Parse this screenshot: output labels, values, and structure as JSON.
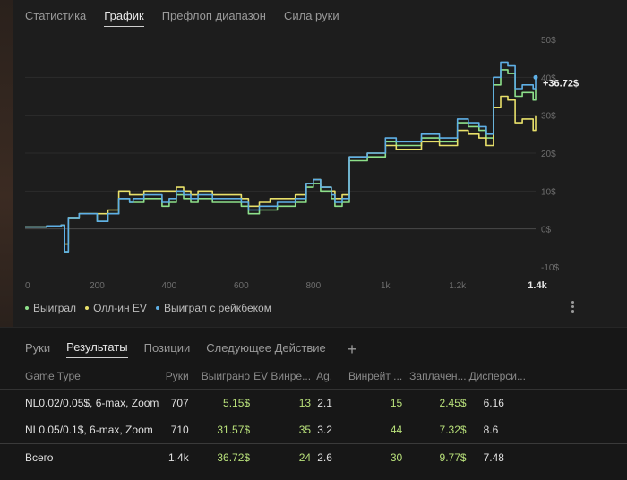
{
  "tabs_top": [
    "Статистика",
    "График",
    "Префлоп диапазон",
    "Сила руки"
  ],
  "active_top_tab": 1,
  "colors": {
    "won": "#8de08a",
    "allin_ev": "#e8e06a",
    "rakeback": "#5fb0e6",
    "positive": "#b8e07a",
    "background": "#1c1c1c"
  },
  "chart_data": {
    "type": "line",
    "x_ticks": [
      "0",
      "200",
      "400",
      "600",
      "800",
      "1k",
      "1.2k",
      "1.4k"
    ],
    "y_ticks": [
      "50$",
      "40$",
      "30$",
      "20$",
      "10$",
      "0$",
      "-10$"
    ],
    "xlim": [
      0,
      1417
    ],
    "ylim": [
      -10,
      50
    ],
    "grid": true,
    "legend_position": "bottom-left",
    "end_label": "+36.72$",
    "x_end_label": "1.4k",
    "series": [
      {
        "name": "Выиграл",
        "color": "#8de08a",
        "x": [
          0,
          60,
          100,
          110,
          120,
          150,
          200,
          230,
          260,
          290,
          300,
          330,
          380,
          400,
          420,
          440,
          460,
          480,
          520,
          560,
          600,
          620,
          650,
          680,
          700,
          720,
          750,
          780,
          800,
          820,
          850,
          860,
          880,
          900,
          950,
          1000,
          1030,
          1100,
          1150,
          1200,
          1230,
          1260,
          1280,
          1300,
          1320,
          1340,
          1360,
          1380,
          1410,
          1417
        ],
        "y": [
          0.5,
          0.8,
          1,
          -6,
          3,
          4,
          2,
          4,
          8,
          7,
          7,
          8,
          6,
          7,
          9,
          8,
          7,
          8,
          7,
          7,
          6,
          4,
          5,
          5,
          6,
          6,
          7,
          11,
          12,
          10,
          8,
          6,
          7,
          18,
          19,
          23,
          22,
          24,
          23,
          28,
          27,
          26,
          24,
          38,
          42,
          41,
          35,
          36,
          34,
          37
        ]
      },
      {
        "name": "Олл-ин EV",
        "color": "#e8e06a",
        "x": [
          0,
          60,
          100,
          110,
          120,
          150,
          200,
          230,
          260,
          290,
          300,
          330,
          380,
          400,
          420,
          440,
          460,
          480,
          520,
          560,
          600,
          620,
          650,
          680,
          700,
          720,
          750,
          780,
          800,
          820,
          850,
          860,
          880,
          900,
          950,
          1000,
          1030,
          1100,
          1150,
          1200,
          1230,
          1260,
          1280,
          1300,
          1320,
          1340,
          1360,
          1380,
          1410,
          1417
        ],
        "y": [
          0.5,
          0.8,
          1,
          -4,
          3,
          4,
          4,
          5,
          10,
          9,
          9,
          10,
          10,
          10,
          11,
          10,
          9,
          10,
          9,
          9,
          8,
          6,
          7,
          8,
          8,
          8,
          9,
          12,
          13,
          11,
          10,
          8,
          9,
          19,
          20,
          22,
          21,
          23,
          22,
          26,
          25,
          24,
          22,
          32,
          35,
          34,
          28,
          29,
          26,
          30
        ]
      },
      {
        "name": "Выиграл с рейкбеком",
        "color": "#5fb0e6",
        "x": [
          0,
          60,
          100,
          110,
          120,
          150,
          200,
          230,
          260,
          290,
          300,
          330,
          380,
          400,
          420,
          440,
          460,
          480,
          520,
          560,
          600,
          620,
          650,
          680,
          700,
          720,
          750,
          780,
          800,
          820,
          850,
          860,
          880,
          900,
          950,
          1000,
          1030,
          1100,
          1150,
          1200,
          1230,
          1260,
          1280,
          1300,
          1320,
          1340,
          1360,
          1380,
          1410,
          1417
        ],
        "y": [
          0.5,
          0.8,
          1,
          -6,
          3,
          4,
          2,
          4,
          8,
          7,
          8,
          9,
          7,
          8,
          10,
          9,
          8,
          9,
          8,
          8,
          7,
          5,
          6,
          6,
          7,
          7,
          8,
          12,
          13,
          11,
          9,
          7,
          8,
          19,
          20,
          24,
          23,
          25,
          24,
          29,
          28,
          27,
          25,
          40,
          44,
          43,
          37,
          38,
          37,
          40
        ]
      }
    ]
  },
  "tabs_bottom": [
    "Руки",
    "Результаты",
    "Позиции",
    "Следующее Действие"
  ],
  "active_bottom_tab": 1,
  "add_tab_icon": "plus-icon",
  "table": {
    "headers": [
      "Game Type",
      "Руки",
      "Выиграно",
      "EV Винре...",
      "Ag.",
      "Винрейт ...",
      "Заплачен...",
      "Дисперси..."
    ],
    "rows": [
      [
        "NL0.02/0.05$, 6-max, Zoom",
        "707",
        "5.15$",
        "13",
        "2.1",
        "15",
        "2.45$",
        "6.16"
      ],
      [
        "NL0.05/0.1$, 6-max, Zoom",
        "710",
        "31.57$",
        "35",
        "3.2",
        "44",
        "7.32$",
        "8.6"
      ]
    ],
    "total": [
      "Всего",
      "1.4k",
      "36.72$",
      "24",
      "2.6",
      "30",
      "9.77$",
      "7.48"
    ]
  }
}
